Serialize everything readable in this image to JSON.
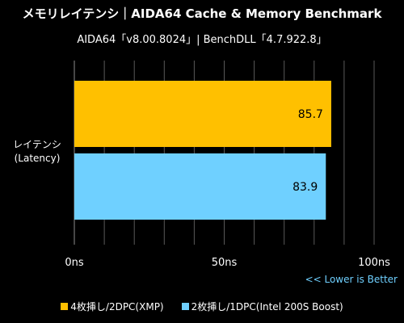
{
  "title": "メモリレイテンシ｜AIDA64 Cache & Memory Benchmark",
  "subtitle": "AIDA64「v8.00.8024」| BenchDLL「4.7.922.8」",
  "note": "<< Lower is Better",
  "chart_data": {
    "type": "bar",
    "orientation": "horizontal",
    "categories": [
      "レイテンシ\n(Latency)"
    ],
    "series": [
      {
        "name": "4枚挿し/2DPC(XMP)",
        "values": [
          85.7
        ],
        "color": "#ffc000",
        "data_label": "85.7"
      },
      {
        "name": "2枚挿し/1DPC(Intel 200S Boost)",
        "values": [
          83.9
        ],
        "color": "#6fd0ff",
        "data_label": "83.9"
      }
    ],
    "xlim": [
      0,
      100
    ],
    "xticks": [
      0,
      50,
      100
    ],
    "xtick_labels": [
      "0ns",
      "50ns",
      "100ns"
    ],
    "grid": true,
    "legend": "bottom"
  }
}
